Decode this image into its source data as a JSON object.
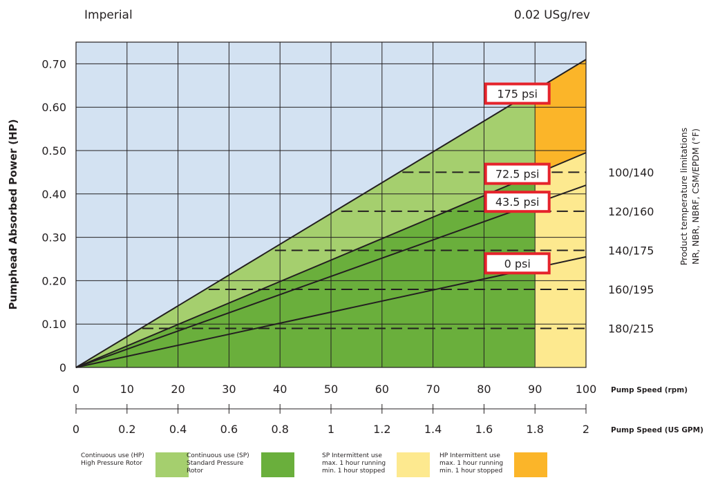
{
  "header": {
    "units": "Imperial",
    "displacement": "0.02 USg/rev"
  },
  "chart_data": {
    "type": "line",
    "ylabel": "Pumphead Absorbed Power (HP)",
    "ylim": [
      0,
      0.75
    ],
    "yticks": [
      "0",
      "0.10",
      "0.20",
      "0.30",
      "0.40",
      "0.50",
      "0.60",
      "0.70"
    ],
    "yticks_values": [
      0,
      0.1,
      0.2,
      0.3,
      0.4,
      0.5,
      0.6,
      0.7
    ],
    "x_primary": {
      "label": "Pump Speed (rpm)",
      "range": [
        0,
        100
      ],
      "ticks": [
        "0",
        "10",
        "20",
        "30",
        "40",
        "50",
        "60",
        "70",
        "80",
        "90",
        "100"
      ]
    },
    "x_secondary": {
      "label": "Pump Speed (US GPM)",
      "ticks": [
        "0",
        "0.2",
        "0.4",
        "0.6",
        "0.8",
        "1",
        "1.2",
        "1.4",
        "1.6",
        "1.8",
        "2"
      ]
    },
    "series": [
      {
        "name": "0 psi",
        "x": [
          0,
          100
        ],
        "y": [
          0,
          0.255
        ]
      },
      {
        "name": "43.5 psi",
        "x": [
          0,
          100
        ],
        "y": [
          0,
          0.42
        ]
      },
      {
        "name": "72.5 psi",
        "x": [
          0,
          100
        ],
        "y": [
          0,
          0.495
        ]
      },
      {
        "name": "175 psi",
        "x": [
          0,
          100
        ],
        "y": [
          0,
          0.71
        ]
      }
    ],
    "continuous_limit_rpm": 90,
    "temperature_limits": {
      "label_line1": "Product temperature limitations",
      "label_line2": "NR, NBR, NBRF, CSM/EPDM (°F)",
      "levels": [
        {
          "label": "100/140",
          "power": 0.45,
          "x_start": 64
        },
        {
          "label": "120/160",
          "power": 0.36,
          "x_start": 52
        },
        {
          "label": "140/175",
          "power": 0.27,
          "x_start": 39
        },
        {
          "label": "160/195",
          "power": 0.18,
          "x_start": 26
        },
        {
          "label": "180/215",
          "power": 0.09,
          "x_start": 13
        }
      ]
    },
    "legend": [
      {
        "text": "Continuous use (HP) High Pressure Rotor",
        "color": "#a5cf6e"
      },
      {
        "text": "Continuous use (SP) Standard Pressure Rotor",
        "color": "#6aaf3c"
      },
      {
        "text": "SP Intermittent use max. 1 hour running min. 1 hour stopped",
        "color": "#fde98f"
      },
      {
        "text": "HP Intermittent use max. 1 hour running min. 1 hour stopped",
        "color": "#fbb529"
      }
    ],
    "colors": {
      "background": "#d3e2f2",
      "hp_continuous": "#a5cf6e",
      "sp_continuous": "#6aaf3c",
      "sp_intermittent": "#fde98f",
      "hp_intermittent": "#fbb529",
      "label_border": "#e5232b"
    },
    "grid": true
  }
}
